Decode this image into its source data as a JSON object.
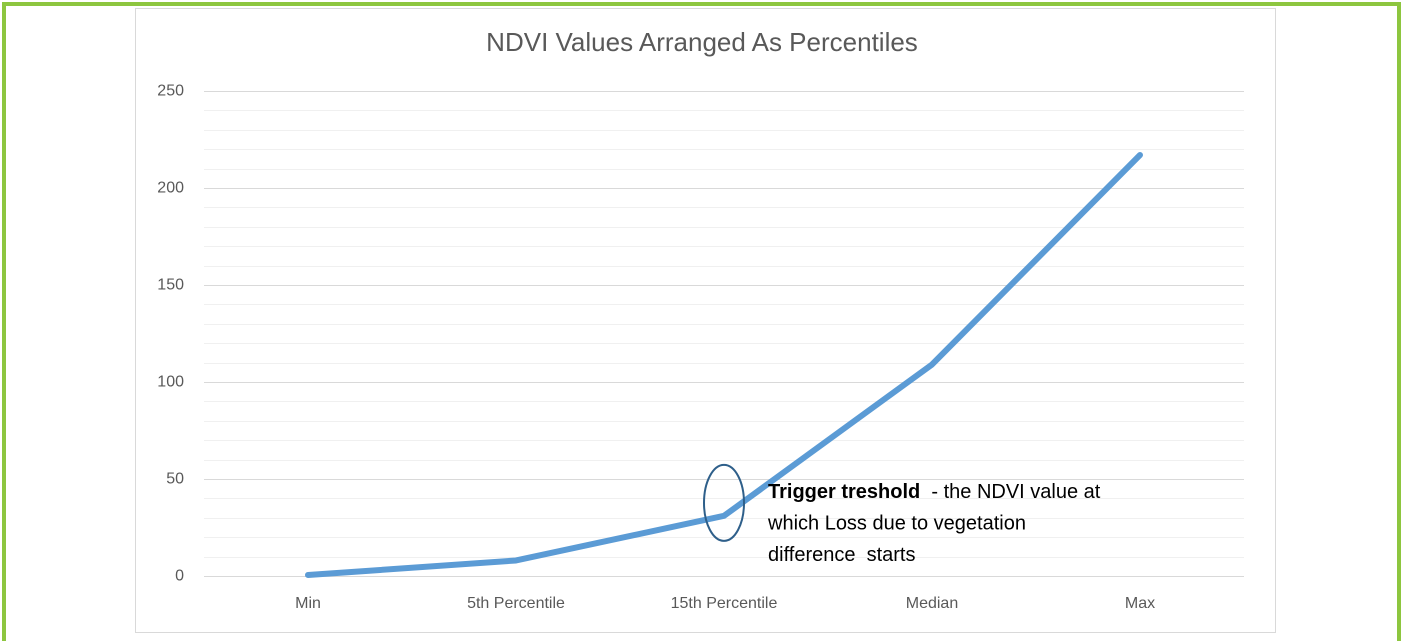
{
  "chart_data": {
    "type": "line",
    "title": "NDVI Values Arranged As Percentiles",
    "categories": [
      "Min",
      "5th Percentile",
      "15th Percentile",
      "Median",
      "Max"
    ],
    "series": [
      {
        "name": "NDVI",
        "color": "#5b9bd5",
        "values": [
          0.5,
          8,
          31,
          109,
          217
        ]
      }
    ],
    "ylim": [
      0,
      250
    ],
    "yticks": [
      0,
      50,
      100,
      150,
      200,
      250
    ],
    "minor_yticks": [
      10,
      20,
      30,
      40,
      60,
      70,
      80,
      90,
      110,
      120,
      130,
      140,
      160,
      170,
      180,
      190,
      210,
      220,
      230,
      240
    ],
    "grid": true,
    "annotation": {
      "category_index": 2,
      "bold": "Trigger treshold",
      "lines": [
        "  - the NDVI value at",
        "which Loss due to vegetation",
        "difference  starts"
      ]
    }
  }
}
